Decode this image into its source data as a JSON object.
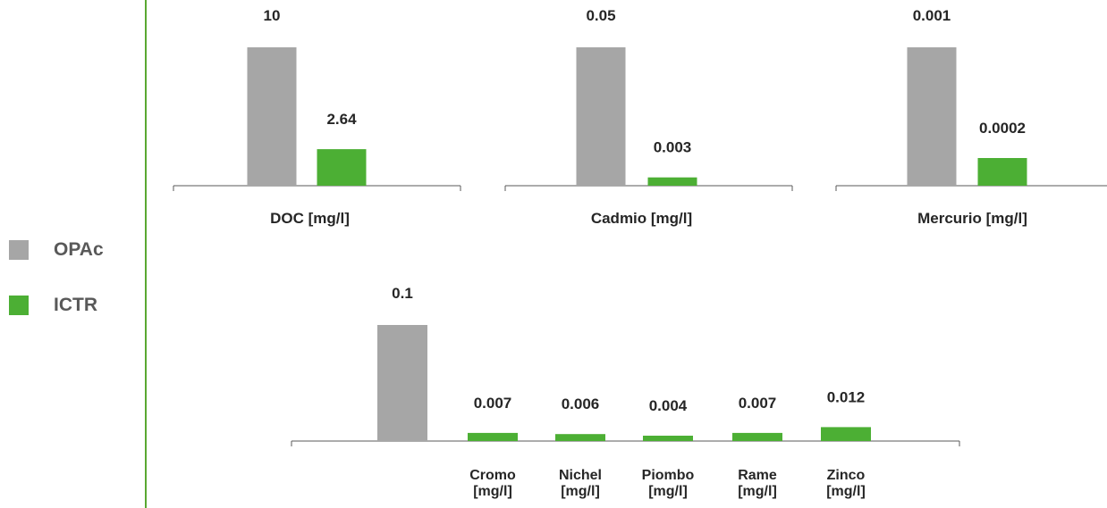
{
  "colors": {
    "opac": "#a6a6a6",
    "ictr": "#4caf34",
    "divider": "#5aa832",
    "axis": "#595959"
  },
  "legend": [
    {
      "label": "OPAc",
      "color": "#a6a6a6"
    },
    {
      "label": "ICTR",
      "color": "#4caf34"
    }
  ],
  "chart_data": [
    {
      "type": "bar",
      "categories": [
        "DOC [mg/l]"
      ],
      "series": [
        {
          "name": "OPAc",
          "values": [
            10
          ]
        },
        {
          "name": "ICTR",
          "values": [
            2.64
          ]
        }
      ],
      "value_labels": [
        [
          "10"
        ],
        [
          "2.64"
        ]
      ],
      "ylim": [
        0,
        10
      ]
    },
    {
      "type": "bar",
      "categories": [
        "Cadmio [mg/l]"
      ],
      "series": [
        {
          "name": "OPAc",
          "values": [
            0.05
          ]
        },
        {
          "name": "ICTR",
          "values": [
            0.003
          ]
        }
      ],
      "value_labels": [
        [
          "0.05"
        ],
        [
          "0.003"
        ]
      ],
      "ylim": [
        0,
        0.05
      ]
    },
    {
      "type": "bar",
      "categories": [
        "Mercurio [mg/l]"
      ],
      "series": [
        {
          "name": "OPAc",
          "values": [
            0.001
          ]
        },
        {
          "name": "ICTR",
          "values": [
            0.0002
          ]
        }
      ],
      "value_labels": [
        [
          "0.001"
        ],
        [
          "0.0002"
        ]
      ],
      "ylim": [
        0,
        0.001
      ]
    },
    {
      "type": "bar",
      "categories": [
        "",
        "Cromo [mg/l]",
        "Nichel [mg/l]",
        "Piombo [mg/l]",
        "Rame [mg/l]",
        "Zinco [mg/l]"
      ],
      "series": [
        {
          "name": "OPAc",
          "values": [
            0.1,
            null,
            null,
            null,
            null,
            null
          ]
        },
        {
          "name": "ICTR",
          "values": [
            null,
            0.007,
            0.006,
            0.004,
            0.007,
            0.012
          ]
        }
      ],
      "value_labels": [
        [
          "0.1",
          "",
          "",
          "",
          "",
          ""
        ],
        [
          "",
          "0.007",
          "0.006",
          "0.004",
          "0.007",
          "0.012"
        ]
      ],
      "ylim": [
        0,
        0.1
      ]
    }
  ]
}
